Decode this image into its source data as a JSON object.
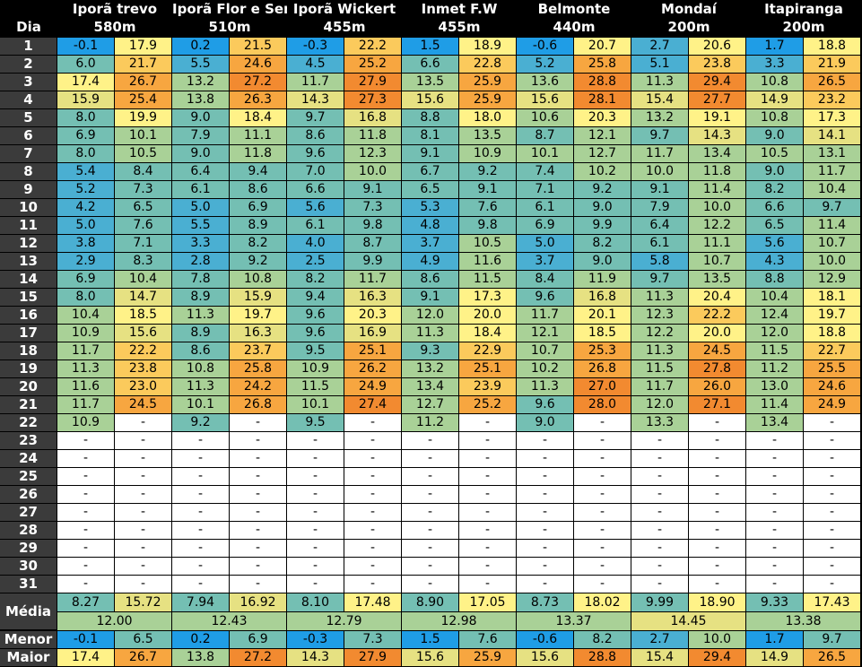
{
  "header": {
    "dia_label": "Dia",
    "avg_label": "Média",
    "min_label": "Menor",
    "max_label": "Maior"
  },
  "stations": [
    {
      "name": "Iporã trevo",
      "alt": "580m"
    },
    {
      "name": "Iporã Flor e Ser",
      "alt": "510m"
    },
    {
      "name": "Iporã Wickert",
      "alt": "455m"
    },
    {
      "name": "Inmet F.W",
      "alt": "455m"
    },
    {
      "name": "Belmonte",
      "alt": "440m"
    },
    {
      "name": "Mondaí",
      "alt": "200m"
    },
    {
      "name": "Itapiranga",
      "alt": "200m"
    }
  ],
  "rows": [
    {
      "d": "1",
      "v": [
        [
          "-0.1",
          "17.9"
        ],
        [
          "0.2",
          "21.5"
        ],
        [
          "-0.3",
          "22.2"
        ],
        [
          "1.5",
          "18.9"
        ],
        [
          "-0.6",
          "20.7"
        ],
        [
          "2.7",
          "20.6"
        ],
        [
          "1.7",
          "18.8"
        ]
      ]
    },
    {
      "d": "2",
      "v": [
        [
          "6.0",
          "21.7"
        ],
        [
          "5.5",
          "24.6"
        ],
        [
          "4.5",
          "25.2"
        ],
        [
          "6.6",
          "22.8"
        ],
        [
          "5.2",
          "25.8"
        ],
        [
          "5.1",
          "23.8"
        ],
        [
          "3.3",
          "21.9"
        ]
      ]
    },
    {
      "d": "3",
      "v": [
        [
          "17.4",
          "26.7"
        ],
        [
          "13.2",
          "27.2"
        ],
        [
          "11.7",
          "27.9"
        ],
        [
          "13.5",
          "25.9"
        ],
        [
          "13.6",
          "28.8"
        ],
        [
          "11.3",
          "29.4"
        ],
        [
          "10.8",
          "26.5"
        ]
      ]
    },
    {
      "d": "4",
      "v": [
        [
          "15.9",
          "25.4"
        ],
        [
          "13.8",
          "26.3"
        ],
        [
          "14.3",
          "27.3"
        ],
        [
          "15.6",
          "25.9"
        ],
        [
          "15.6",
          "28.1"
        ],
        [
          "15.4",
          "27.7"
        ],
        [
          "14.9",
          "23.2"
        ]
      ]
    },
    {
      "d": "5",
      "v": [
        [
          "8.0",
          "19.9"
        ],
        [
          "9.0",
          "18.4"
        ],
        [
          "9.7",
          "16.8"
        ],
        [
          "8.8",
          "18.0"
        ],
        [
          "10.6",
          "20.3"
        ],
        [
          "13.2",
          "19.1"
        ],
        [
          "10.8",
          "17.3"
        ]
      ]
    },
    {
      "d": "6",
      "v": [
        [
          "6.9",
          "10.1"
        ],
        [
          "7.9",
          "11.1"
        ],
        [
          "8.6",
          "11.8"
        ],
        [
          "8.1",
          "13.5"
        ],
        [
          "8.7",
          "12.1"
        ],
        [
          "9.7",
          "14.3"
        ],
        [
          "9.0",
          "14.1"
        ]
      ]
    },
    {
      "d": "7",
      "v": [
        [
          "8.0",
          "10.5"
        ],
        [
          "9.0",
          "11.8"
        ],
        [
          "9.6",
          "12.3"
        ],
        [
          "9.1",
          "10.9"
        ],
        [
          "10.1",
          "12.7"
        ],
        [
          "11.7",
          "13.4"
        ],
        [
          "10.5",
          "13.1"
        ]
      ]
    },
    {
      "d": "8",
      "v": [
        [
          "5.4",
          "8.4"
        ],
        [
          "6.4",
          "9.4"
        ],
        [
          "7.0",
          "10.0"
        ],
        [
          "6.7",
          "9.2"
        ],
        [
          "7.4",
          "10.2"
        ],
        [
          "10.0",
          "11.8"
        ],
        [
          "9.0",
          "11.7"
        ]
      ]
    },
    {
      "d": "9",
      "v": [
        [
          "5.2",
          "7.3"
        ],
        [
          "6.1",
          "8.6"
        ],
        [
          "6.6",
          "9.1"
        ],
        [
          "6.5",
          "9.1"
        ],
        [
          "7.1",
          "9.2"
        ],
        [
          "9.1",
          "11.4"
        ],
        [
          "8.2",
          "10.4"
        ]
      ]
    },
    {
      "d": "10",
      "v": [
        [
          "4.2",
          "6.5"
        ],
        [
          "5.0",
          "6.9"
        ],
        [
          "5.6",
          "7.3"
        ],
        [
          "5.3",
          "7.6"
        ],
        [
          "6.1",
          "9.0"
        ],
        [
          "7.9",
          "10.0"
        ],
        [
          "6.6",
          "9.7"
        ]
      ]
    },
    {
      "d": "11",
      "v": [
        [
          "5.0",
          "7.6"
        ],
        [
          "5.5",
          "8.9"
        ],
        [
          "6.1",
          "9.8"
        ],
        [
          "4.8",
          "9.8"
        ],
        [
          "6.9",
          "9.9"
        ],
        [
          "6.4",
          "12.2"
        ],
        [
          "6.5",
          "11.4"
        ]
      ]
    },
    {
      "d": "12",
      "v": [
        [
          "3.8",
          "7.1"
        ],
        [
          "3.3",
          "8.2"
        ],
        [
          "4.0",
          "8.7"
        ],
        [
          "3.7",
          "10.5"
        ],
        [
          "5.0",
          "8.2"
        ],
        [
          "6.1",
          "11.1"
        ],
        [
          "5.6",
          "10.7"
        ]
      ]
    },
    {
      "d": "13",
      "v": [
        [
          "2.9",
          "8.3"
        ],
        [
          "2.8",
          "9.2"
        ],
        [
          "2.5",
          "9.9"
        ],
        [
          "4.9",
          "11.6"
        ],
        [
          "3.7",
          "9.0"
        ],
        [
          "5.8",
          "10.7"
        ],
        [
          "4.3",
          "10.0"
        ]
      ]
    },
    {
      "d": "14",
      "v": [
        [
          "6.9",
          "10.4"
        ],
        [
          "7.8",
          "10.8"
        ],
        [
          "8.2",
          "11.7"
        ],
        [
          "8.6",
          "11.5"
        ],
        [
          "8.4",
          "11.9"
        ],
        [
          "9.7",
          "13.5"
        ],
        [
          "8.8",
          "12.9"
        ]
      ]
    },
    {
      "d": "15",
      "v": [
        [
          "8.0",
          "14.7"
        ],
        [
          "8.9",
          "15.9"
        ],
        [
          "9.4",
          "16.3"
        ],
        [
          "9.1",
          "17.3"
        ],
        [
          "9.6",
          "16.8"
        ],
        [
          "11.3",
          "20.4"
        ],
        [
          "10.4",
          "18.1"
        ]
      ]
    },
    {
      "d": "16",
      "v": [
        [
          "10.4",
          "18.5"
        ],
        [
          "11.3",
          "19.7"
        ],
        [
          "9.6",
          "20.3"
        ],
        [
          "12.0",
          "20.0"
        ],
        [
          "11.7",
          "20.1"
        ],
        [
          "12.3",
          "22.2"
        ],
        [
          "12.4",
          "19.7"
        ]
      ]
    },
    {
      "d": "17",
      "v": [
        [
          "10.9",
          "15.6"
        ],
        [
          "8.9",
          "16.3"
        ],
        [
          "9.6",
          "16.9"
        ],
        [
          "11.3",
          "18.4"
        ],
        [
          "12.1",
          "18.5"
        ],
        [
          "12.2",
          "20.0"
        ],
        [
          "12.0",
          "18.8"
        ]
      ]
    },
    {
      "d": "18",
      "v": [
        [
          "11.7",
          "22.2"
        ],
        [
          "8.6",
          "23.7"
        ],
        [
          "9.5",
          "25.1"
        ],
        [
          "9.3",
          "22.9"
        ],
        [
          "10.7",
          "25.3"
        ],
        [
          "11.3",
          "24.5"
        ],
        [
          "11.5",
          "22.7"
        ]
      ]
    },
    {
      "d": "19",
      "v": [
        [
          "11.3",
          "23.8"
        ],
        [
          "10.8",
          "25.8"
        ],
        [
          "10.9",
          "26.2"
        ],
        [
          "13.2",
          "25.1"
        ],
        [
          "10.2",
          "26.8"
        ],
        [
          "11.5",
          "27.8"
        ],
        [
          "11.2",
          "25.5"
        ]
      ]
    },
    {
      "d": "20",
      "v": [
        [
          "11.6",
          "23.0"
        ],
        [
          "11.3",
          "24.2"
        ],
        [
          "11.5",
          "24.9"
        ],
        [
          "13.4",
          "23.9"
        ],
        [
          "11.3",
          "27.0"
        ],
        [
          "11.7",
          "26.0"
        ],
        [
          "13.0",
          "24.6"
        ]
      ]
    },
    {
      "d": "21",
      "v": [
        [
          "11.7",
          "24.5"
        ],
        [
          "10.1",
          "26.8"
        ],
        [
          "10.1",
          "27.4"
        ],
        [
          "12.7",
          "25.2"
        ],
        [
          "9.6",
          "28.0"
        ],
        [
          "12.0",
          "27.1"
        ],
        [
          "11.4",
          "24.9"
        ]
      ]
    },
    {
      "d": "22",
      "v": [
        [
          "10.9",
          "-"
        ],
        [
          "9.2",
          "-"
        ],
        [
          "9.5",
          "-"
        ],
        [
          "11.2",
          "-"
        ],
        [
          "9.0",
          "-"
        ],
        [
          "13.3",
          "-"
        ],
        [
          "13.4",
          "-"
        ]
      ]
    },
    {
      "d": "23",
      "v": [
        [
          "-",
          "-"
        ],
        [
          "-",
          "-"
        ],
        [
          "-",
          "-"
        ],
        [
          "-",
          "-"
        ],
        [
          "-",
          "-"
        ],
        [
          "-",
          "-"
        ],
        [
          "-",
          "-"
        ]
      ]
    },
    {
      "d": "24",
      "v": [
        [
          "-",
          "-"
        ],
        [
          "-",
          "-"
        ],
        [
          "-",
          "-"
        ],
        [
          "-",
          "-"
        ],
        [
          "-",
          "-"
        ],
        [
          "-",
          "-"
        ],
        [
          "-",
          "-"
        ]
      ]
    },
    {
      "d": "25",
      "v": [
        [
          "-",
          "-"
        ],
        [
          "-",
          "-"
        ],
        [
          "-",
          "-"
        ],
        [
          "-",
          "-"
        ],
        [
          "-",
          "-"
        ],
        [
          "-",
          "-"
        ],
        [
          "-",
          "-"
        ]
      ]
    },
    {
      "d": "26",
      "v": [
        [
          "-",
          "-"
        ],
        [
          "-",
          "-"
        ],
        [
          "-",
          "-"
        ],
        [
          "-",
          "-"
        ],
        [
          "-",
          "-"
        ],
        [
          "-",
          "-"
        ],
        [
          "-",
          "-"
        ]
      ]
    },
    {
      "d": "27",
      "v": [
        [
          "-",
          "-"
        ],
        [
          "-",
          "-"
        ],
        [
          "-",
          "-"
        ],
        [
          "-",
          "-"
        ],
        [
          "-",
          "-"
        ],
        [
          "-",
          "-"
        ],
        [
          "-",
          "-"
        ]
      ]
    },
    {
      "d": "28",
      "v": [
        [
          "-",
          "-"
        ],
        [
          "-",
          "-"
        ],
        [
          "-",
          "-"
        ],
        [
          "-",
          "-"
        ],
        [
          "-",
          "-"
        ],
        [
          "-",
          "-"
        ],
        [
          "-",
          "-"
        ]
      ]
    },
    {
      "d": "29",
      "v": [
        [
          "-",
          "-"
        ],
        [
          "-",
          "-"
        ],
        [
          "-",
          "-"
        ],
        [
          "-",
          "-"
        ],
        [
          "-",
          "-"
        ],
        [
          "-",
          "-"
        ],
        [
          "-",
          "-"
        ]
      ]
    },
    {
      "d": "30",
      "v": [
        [
          "-",
          "-"
        ],
        [
          "-",
          "-"
        ],
        [
          "-",
          "-"
        ],
        [
          "-",
          "-"
        ],
        [
          "-",
          "-"
        ],
        [
          "-",
          "-"
        ],
        [
          "-",
          "-"
        ]
      ]
    },
    {
      "d": "31",
      "v": [
        [
          "-",
          "-"
        ],
        [
          "-",
          "-"
        ],
        [
          "-",
          "-"
        ],
        [
          "-",
          "-"
        ],
        [
          "-",
          "-"
        ],
        [
          "-",
          "-"
        ],
        [
          "-",
          "-"
        ]
      ]
    }
  ],
  "averages": {
    "pairs": [
      [
        "8.27",
        "15.72"
      ],
      [
        "7.94",
        "16.92"
      ],
      [
        "8.10",
        "17.48"
      ],
      [
        "8.90",
        "17.05"
      ],
      [
        "8.73",
        "18.02"
      ],
      [
        "9.99",
        "18.90"
      ],
      [
        "9.33",
        "17.43"
      ]
    ],
    "means": [
      "12.00",
      "12.43",
      "12.79",
      "12.98",
      "13.37",
      "14.45",
      "13.38"
    ]
  },
  "minimums": [
    [
      "-0.1",
      "6.5"
    ],
    [
      "0.2",
      "6.9"
    ],
    [
      "-0.3",
      "7.3"
    ],
    [
      "1.5",
      "7.6"
    ],
    [
      "-0.6",
      "8.2"
    ],
    [
      "2.7",
      "10.0"
    ],
    [
      "1.7",
      "9.7"
    ]
  ],
  "maximums": [
    [
      "17.4",
      "26.7"
    ],
    [
      "13.8",
      "27.2"
    ],
    [
      "14.3",
      "27.9"
    ],
    [
      "15.6",
      "25.9"
    ],
    [
      "15.6",
      "28.8"
    ],
    [
      "15.4",
      "29.4"
    ],
    [
      "14.9",
      "26.5"
    ]
  ],
  "colors": {
    "header_bg": "#000000",
    "label_bg": "#3b3b3b",
    "blank_bg": "#ffffff",
    "scale": [
      "#1f9de6",
      "#4aafd2",
      "#74bfb3",
      "#a9d197",
      "#e6e182",
      "#fff288",
      "#fbca5c",
      "#f7a640",
      "#f28a30"
    ]
  }
}
